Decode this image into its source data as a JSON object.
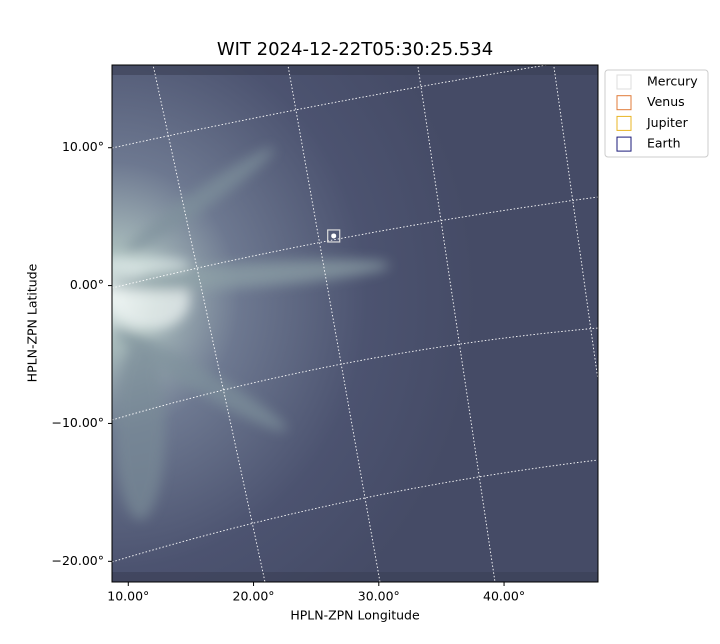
{
  "chart_data": {
    "type": "image",
    "title": "WIT 2024-12-22T05:30:25.534",
    "xlabel": "HPLN-ZPN Longitude",
    "ylabel": "HPLN-ZPN Latitude",
    "xlim": [
      8.7,
      47.5
    ],
    "ylim": [
      -21.5,
      16.0
    ],
    "xticks": [
      {
        "value": 10,
        "label": "10.00°"
      },
      {
        "value": 20,
        "label": "20.00°"
      },
      {
        "value": 30,
        "label": "30.00°"
      },
      {
        "value": 40,
        "label": "40.00°"
      }
    ],
    "yticks": [
      {
        "value": 10,
        "label": "10.00°"
      },
      {
        "value": 0,
        "label": "0.00°"
      },
      {
        "value": -10,
        "label": "−10.00°"
      },
      {
        "value": -20,
        "label": "−20.00°"
      }
    ],
    "series": [
      {
        "name": "Mercury",
        "color": "#dddddd",
        "x": [
          26.4
        ],
        "y": [
          3.6
        ]
      },
      {
        "name": "Venus",
        "color": "#e07b39",
        "x": [],
        "y": []
      },
      {
        "name": "Jupiter",
        "color": "#e8b424",
        "x": [],
        "y": []
      },
      {
        "name": "Earth",
        "color": "#1a1a7a",
        "x": [],
        "y": []
      }
    ]
  }
}
